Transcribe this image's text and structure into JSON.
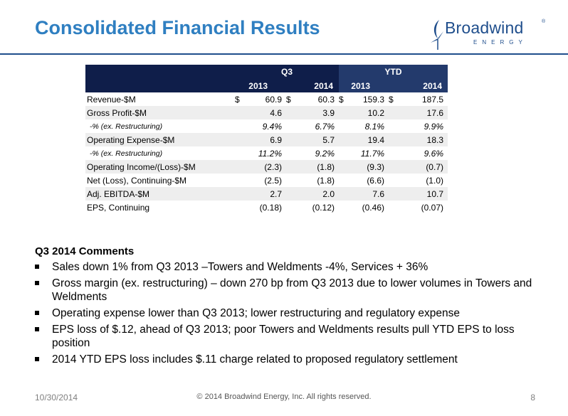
{
  "slide": {
    "title": "Consolidated Financial Results",
    "date": "10/30/2014",
    "copyright": "© 2014 Broadwind Energy, Inc. All rights reserved.",
    "page_number": "8"
  },
  "logo": {
    "name": "Broadwind",
    "trademark": "®",
    "subtitle": "ENERGY",
    "color": "#1f4e8c"
  },
  "table": {
    "group_headers": [
      "Q3",
      "YTD"
    ],
    "year_headers": [
      "2013",
      "2014",
      "2013",
      "2014"
    ],
    "currency_symbol": "$",
    "rows": [
      {
        "label": "Revenue-$M",
        "values": [
          "60.9",
          "60.3",
          "159.3",
          "187.5"
        ],
        "currency": true,
        "italic": false,
        "sub": false
      },
      {
        "label": "Gross Profit-$M",
        "values": [
          "4.6",
          "3.9",
          "10.2",
          "17.6"
        ],
        "currency": false,
        "italic": false,
        "sub": false
      },
      {
        "label": "-% (ex. Restructuring)",
        "values": [
          "9.4%",
          "6.7%",
          "8.1%",
          "9.9%"
        ],
        "currency": false,
        "italic": true,
        "sub": true
      },
      {
        "label": "Operating Expense-$M",
        "values": [
          "6.9",
          "5.7",
          "19.4",
          "18.3"
        ],
        "currency": false,
        "italic": false,
        "sub": false
      },
      {
        "label": "-% (ex. Restructuring)",
        "values": [
          "11.2%",
          "9.2%",
          "11.7%",
          "9.6%"
        ],
        "currency": false,
        "italic": true,
        "sub": true
      },
      {
        "label": "Operating Income/(Loss)-$M",
        "values": [
          "(2.3)",
          "(1.8)",
          "(9.3)",
          "(0.7)"
        ],
        "currency": false,
        "italic": false,
        "sub": false
      },
      {
        "label": "Net (Loss), Continuing-$M",
        "values": [
          "(2.5)",
          "(1.8)",
          "(6.6)",
          "(1.0)"
        ],
        "currency": false,
        "italic": false,
        "sub": false
      },
      {
        "label": "Adj. EBITDA-$M",
        "values": [
          "2.7",
          "2.0",
          "7.6",
          "10.7"
        ],
        "currency": false,
        "italic": false,
        "sub": false
      },
      {
        "label": "EPS, Continuing",
        "values": [
          "(0.18)",
          "(0.12)",
          "(0.46)",
          "(0.07)"
        ],
        "currency": false,
        "italic": false,
        "sub": false
      }
    ]
  },
  "comments": {
    "heading": "Q3 2014 Comments",
    "bullets": [
      "Sales down 1% from Q3 2013 –Towers and Weldments -4%, Services + 36%",
      "Gross margin (ex. restructuring) – down 270 bp from Q3 2013 due to lower volumes in Towers and Weldments",
      "Operating expense lower than Q3 2013; lower restructuring and regulatory expense",
      "EPS loss of $.12, ahead of Q3 2013; poor Towers and Weldments results pull YTD EPS to loss position",
      "2014 YTD EPS loss includes $.11 charge related to proposed regulatory settlement"
    ]
  },
  "colors": {
    "title": "#2f7fc1",
    "header_fill": "#0f1e4a",
    "header_fill_ytd": "#233a6c",
    "row_shade": "#eeeeee",
    "rule": "#1f4e8c"
  }
}
